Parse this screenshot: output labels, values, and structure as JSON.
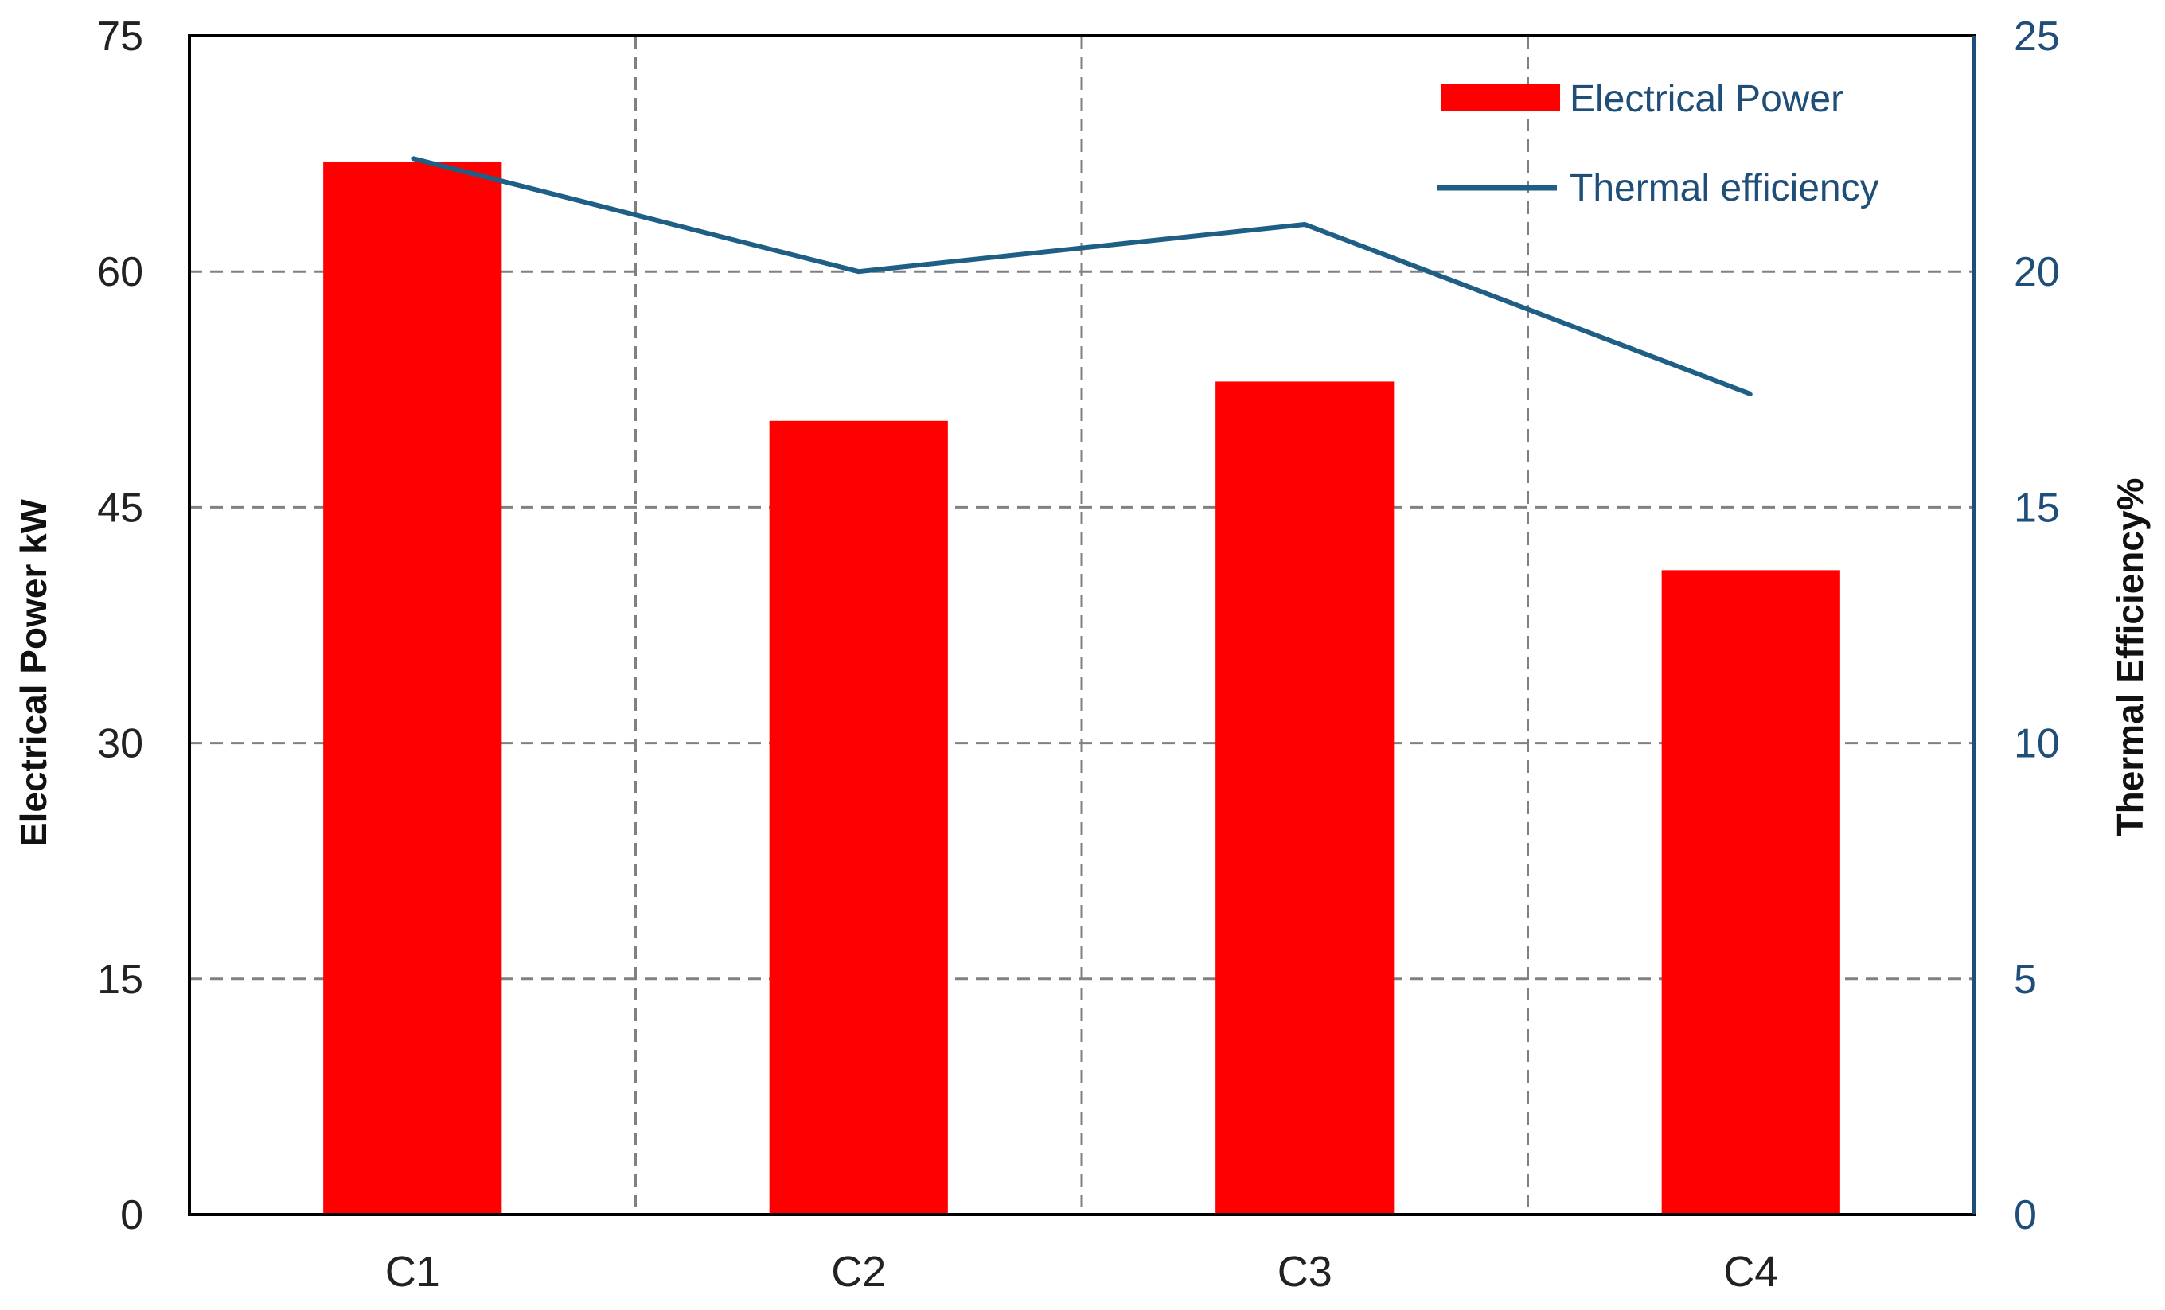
{
  "chart_data": {
    "type": "bar",
    "categories": [
      "C1",
      "C2",
      "C3",
      "C4"
    ],
    "series": [
      {
        "name": "Electrical Power",
        "type": "bar",
        "axis": "left",
        "color": "#ff0000",
        "values": [
          67,
          50.5,
          53,
          41
        ]
      },
      {
        "name": "Thermal efficiency",
        "type": "line",
        "axis": "right",
        "color": "#1f5f86",
        "values": [
          22.4,
          20.0,
          21.0,
          17.4
        ]
      }
    ],
    "title": "",
    "xlabel": "",
    "ylabel": "Electrical Power kW",
    "y2label": "Thermal Efficiency%",
    "ylim": [
      0,
      75
    ],
    "y2lim": [
      0,
      25
    ],
    "yticks": [
      "0",
      "15",
      "30",
      "45",
      "60",
      "75"
    ],
    "y2ticks": [
      "0",
      "5",
      "10",
      "15",
      "20",
      "25"
    ],
    "grid": true,
    "legend_position": "top-right"
  }
}
